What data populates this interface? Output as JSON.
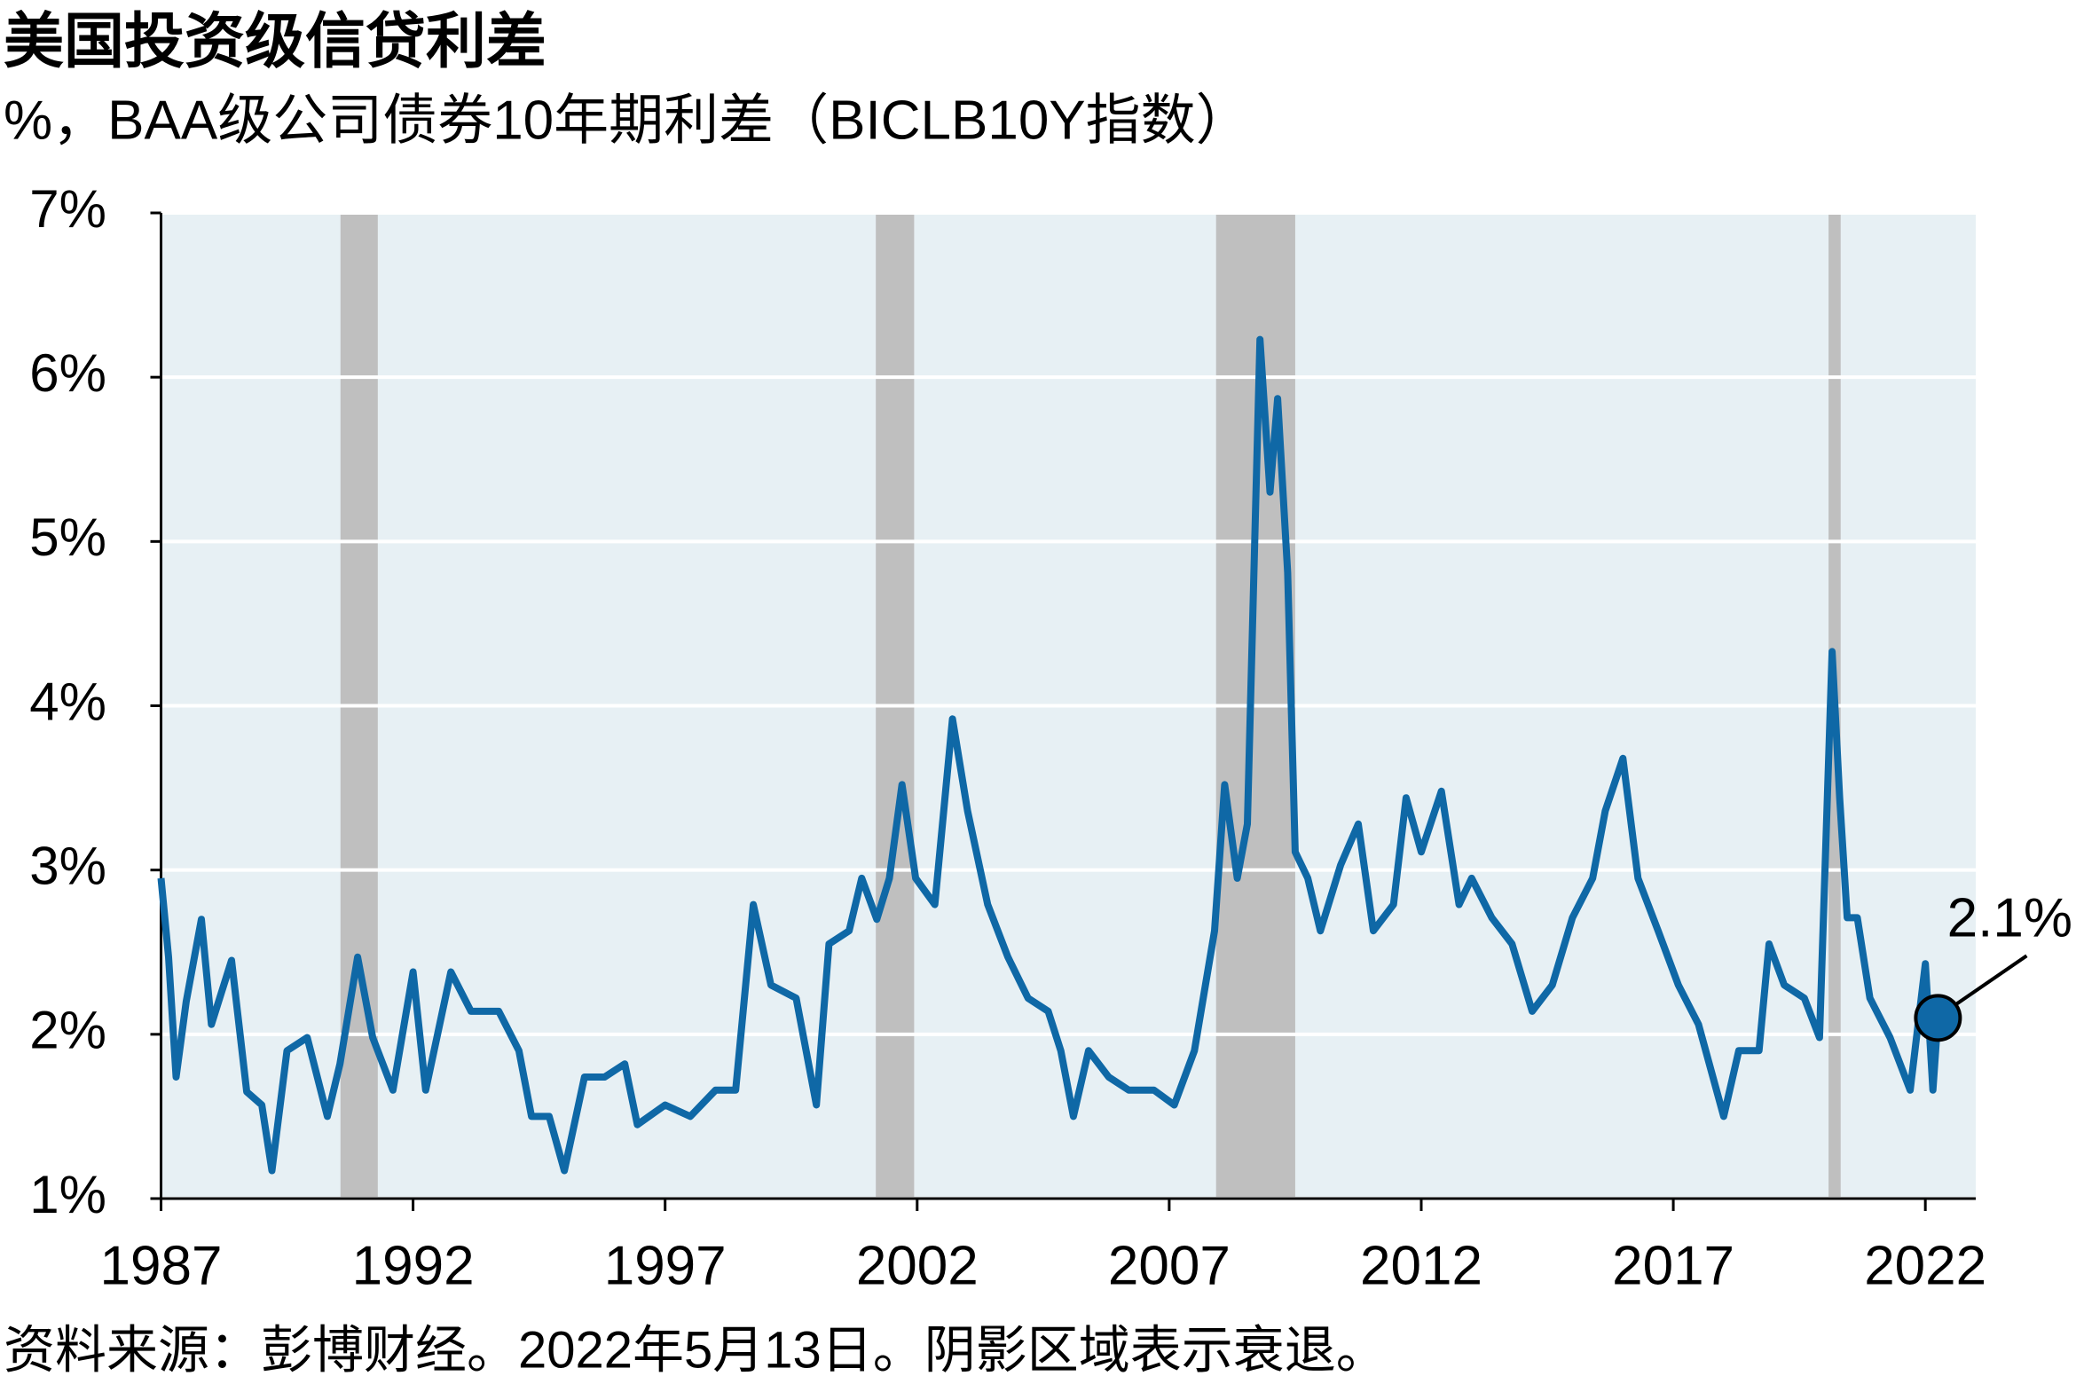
{
  "chart_data": {
    "type": "line",
    "title": "美国投资级信贷利差",
    "subtitle": "%，BAA级公司债券10年期利差（BICLB10Y指数）",
    "source": "资料来源：彭博财经。2022年5月13日。阴影区域表示衰退。",
    "x": [
      1987,
      1987.15,
      1987.3,
      1987.5,
      1987.8,
      1988.0,
      1988.4,
      1988.7,
      1989.0,
      1989.2,
      1989.5,
      1989.9,
      1990.3,
      1990.55,
      1990.9,
      1991.2,
      1991.6,
      1992.0,
      1992.25,
      1992.75,
      1993.15,
      1993.7,
      1994.1,
      1994.35,
      1994.7,
      1995.0,
      1995.4,
      1995.8,
      1996.2,
      1996.45,
      1997.0,
      1997.5,
      1998.0,
      1998.4,
      1998.75,
      1999.1,
      1999.6,
      2000.0,
      2000.25,
      2000.65,
      2000.9,
      2001.2,
      2001.45,
      2001.7,
      2001.97,
      2002.35,
      2002.7,
      2003.0,
      2003.4,
      2003.8,
      2004.2,
      2004.6,
      2004.85,
      2005.1,
      2005.4,
      2005.8,
      2006.2,
      2006.7,
      2007.1,
      2007.5,
      2007.9,
      2008.1,
      2008.35,
      2008.55,
      2008.8,
      2009.0,
      2009.15,
      2009.35,
      2009.5,
      2009.75,
      2010.0,
      2010.4,
      2010.75,
      2011.05,
      2011.45,
      2011.7,
      2012.0,
      2012.4,
      2012.75,
      2013.0,
      2013.4,
      2013.8,
      2014.2,
      2014.6,
      2015.0,
      2015.4,
      2015.65,
      2016.0,
      2016.3,
      2016.7,
      2017.1,
      2017.5,
      2018.0,
      2018.3,
      2018.7,
      2018.9,
      2019.2,
      2019.6,
      2019.9,
      2020.15,
      2020.3,
      2020.45,
      2020.65,
      2020.9,
      2021.3,
      2021.7,
      2022.0,
      2022.15,
      2022.25
    ],
    "series": [
      {
        "name": "BICLB10Y",
        "color": "#0f68a6",
        "values": [
          2.95,
          2.47,
          1.74,
          2.2,
          2.7,
          2.06,
          2.45,
          1.65,
          1.57,
          1.17,
          1.9,
          1.98,
          1.5,
          1.82,
          2.47,
          1.98,
          1.66,
          2.38,
          1.66,
          2.38,
          2.14,
          2.14,
          1.9,
          1.5,
          1.5,
          1.17,
          1.74,
          1.74,
          1.82,
          1.45,
          1.57,
          1.5,
          1.66,
          1.66,
          2.79,
          2.3,
          2.22,
          1.57,
          2.55,
          2.63,
          2.95,
          2.7,
          2.95,
          3.52,
          2.95,
          2.79,
          3.92,
          3.36,
          2.79,
          2.47,
          2.22,
          2.14,
          1.9,
          1.5,
          1.9,
          1.74,
          1.66,
          1.66,
          1.57,
          1.9,
          2.63,
          3.52,
          2.95,
          3.28,
          6.23,
          5.3,
          5.87,
          4.81,
          3.11,
          2.95,
          2.63,
          3.03,
          3.28,
          2.63,
          2.79,
          3.44,
          3.11,
          3.48,
          2.79,
          2.95,
          2.71,
          2.55,
          2.14,
          2.3,
          2.71,
          2.95,
          3.36,
          3.68,
          2.95,
          2.63,
          2.3,
          2.06,
          1.5,
          1.9,
          1.9,
          2.55,
          2.3,
          2.22,
          1.98,
          4.33,
          3.44,
          2.71,
          2.71,
          2.22,
          1.98,
          1.66,
          2.43,
          1.66,
          2.1
        ]
      }
    ],
    "recessions": [
      [
        1990.56,
        1991.3
      ],
      [
        2001.18,
        2001.94
      ],
      [
        2007.93,
        2009.5
      ],
      [
        2020.08,
        2020.32
      ]
    ],
    "annotation": {
      "label": "2.1%",
      "x": 2022.25,
      "y": 2.1
    },
    "xlim": [
      1987,
      2023
    ],
    "xticks": [
      1987,
      1992,
      1997,
      2002,
      2007,
      2012,
      2017,
      2022
    ],
    "ylim": [
      1,
      7
    ],
    "yticks": [
      {
        "value": 1,
        "label": "1%"
      },
      {
        "value": 2,
        "label": "2%"
      },
      {
        "value": 3,
        "label": "3%"
      },
      {
        "value": 4,
        "label": "4%"
      },
      {
        "value": 5,
        "label": "5%"
      },
      {
        "value": 6,
        "label": "6%"
      },
      {
        "value": 7,
        "label": "7%"
      }
    ],
    "grid": true,
    "background": "#e7f0f4",
    "recession_color": "#bfbfbf"
  }
}
